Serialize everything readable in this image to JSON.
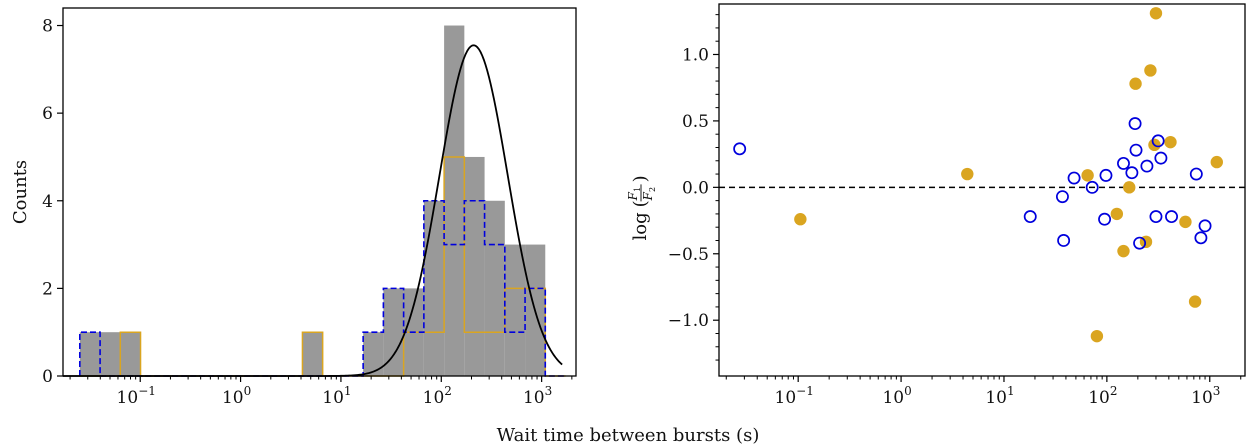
{
  "xlabel": "Wait time between bursts (s)",
  "colors": {
    "hist_fill": "#999999",
    "gold": "#DAA520",
    "blue": "#0000DD",
    "curve": "#000000",
    "axis": "#000000"
  },
  "chart_data": [
    {
      "type": "histogram",
      "ylabel": "Counts",
      "xscale": "log",
      "xlim": [
        0.017,
        2200
      ],
      "ylim": [
        0,
        8.4
      ],
      "x_ticks": [
        {
          "value": 0.1,
          "base": "10",
          "exp": "−1"
        },
        {
          "value": 1,
          "base": "10",
          "exp": "0"
        },
        {
          "value": 10,
          "base": "10",
          "exp": "1"
        },
        {
          "value": 100,
          "base": "10",
          "exp": "2"
        },
        {
          "value": 1000,
          "base": "10",
          "exp": "3"
        }
      ],
      "y_ticks": [
        "0",
        "2",
        "4",
        "6",
        "8"
      ],
      "bin_edges": [
        0.025,
        0.0398,
        0.0633,
        0.1007,
        0.1602,
        0.2549,
        0.4055,
        0.6452,
        1.0264,
        1.633,
        2.598,
        4.134,
        6.577,
        10.46,
        16.65,
        26.49,
        42.14,
        67.05,
        106.7,
        169.7,
        270.0,
        429.6,
        683.5,
        1087,
        1730
      ],
      "series": [
        {
          "style": "filled",
          "counts": [
            1,
            1,
            1,
            0,
            0,
            0,
            0,
            0,
            0,
            0,
            0,
            1,
            0,
            0,
            1,
            2,
            2,
            4,
            8,
            5,
            4,
            3,
            3,
            0
          ]
        },
        {
          "style": "step-solid",
          "counts": [
            0,
            0,
            1,
            0,
            0,
            0,
            0,
            0,
            0,
            0,
            0,
            1,
            0,
            0,
            0,
            0,
            1,
            1,
            5,
            1,
            1,
            2,
            2,
            0
          ]
        },
        {
          "style": "step-dashed",
          "counts": [
            1,
            0,
            0,
            0,
            0,
            0,
            0,
            0,
            0,
            0,
            0,
            0,
            0,
            0,
            1,
            2,
            1,
            4,
            3,
            4,
            3,
            1,
            2,
            0
          ]
        }
      ],
      "fit_curve": {
        "type": "lognormal",
        "peak_x": 210,
        "peak_y": 7.55,
        "sigma_log10": 0.34
      }
    },
    {
      "type": "scatter",
      "xscale": "log",
      "xlim": [
        0.017,
        2200
      ],
      "ylim": [
        -1.42,
        1.38
      ],
      "ylabel_parts": {
        "log": "log",
        "num": "F",
        "num_sub": "1",
        "den": "F",
        "den_sub": "2"
      },
      "x_ticks": [
        {
          "value": 0.1,
          "base": "10",
          "exp": "−1"
        },
        {
          "value": 1,
          "base": "10",
          "exp": "0"
        },
        {
          "value": 10,
          "base": "10",
          "exp": "1"
        },
        {
          "value": 100,
          "base": "10",
          "exp": "2"
        },
        {
          "value": 1000,
          "base": "10",
          "exp": "3"
        }
      ],
      "y_ticks": [
        {
          "value": -1.0,
          "label": "−1.0"
        },
        {
          "value": -0.5,
          "label": "−0.5"
        },
        {
          "value": 0.0,
          "label": "0.0"
        },
        {
          "value": 0.5,
          "label": "0.5"
        },
        {
          "value": 1.0,
          "label": "1.0"
        }
      ],
      "reference_line": 0.0,
      "series": [
        {
          "style": "filled-gold",
          "points": [
            [
              0.105,
              -0.24
            ],
            [
              4.4,
              0.1
            ],
            [
              65,
              0.09
            ],
            [
              80,
              -1.12
            ],
            [
              125,
              -0.2
            ],
            [
              145,
              -0.48
            ],
            [
              165,
              0.0
            ],
            [
              190,
              0.78
            ],
            [
              240,
              -0.41
            ],
            [
              265,
              0.88
            ],
            [
              300,
              1.31
            ],
            [
              290,
              0.32
            ],
            [
              415,
              0.34
            ],
            [
              580,
              -0.26
            ],
            [
              720,
              -0.86
            ],
            [
              1170,
              0.19
            ]
          ]
        },
        {
          "style": "open-blue",
          "points": [
            [
              0.027,
              0.29
            ],
            [
              18,
              -0.22
            ],
            [
              37,
              -0.07
            ],
            [
              38,
              -0.4
            ],
            [
              48,
              0.07
            ],
            [
              72,
              0.0
            ],
            [
              95,
              -0.24
            ],
            [
              98,
              0.09
            ],
            [
              145,
              0.18
            ],
            [
              175,
              0.11
            ],
            [
              188,
              0.48
            ],
            [
              192,
              0.28
            ],
            [
              208,
              -0.42
            ],
            [
              245,
              0.16
            ],
            [
              300,
              -0.22
            ],
            [
              315,
              0.35
            ],
            [
              335,
              0.22
            ],
            [
              425,
              -0.22
            ],
            [
              740,
              0.1
            ],
            [
              820,
              -0.38
            ],
            [
              900,
              -0.29
            ]
          ]
        }
      ]
    }
  ]
}
